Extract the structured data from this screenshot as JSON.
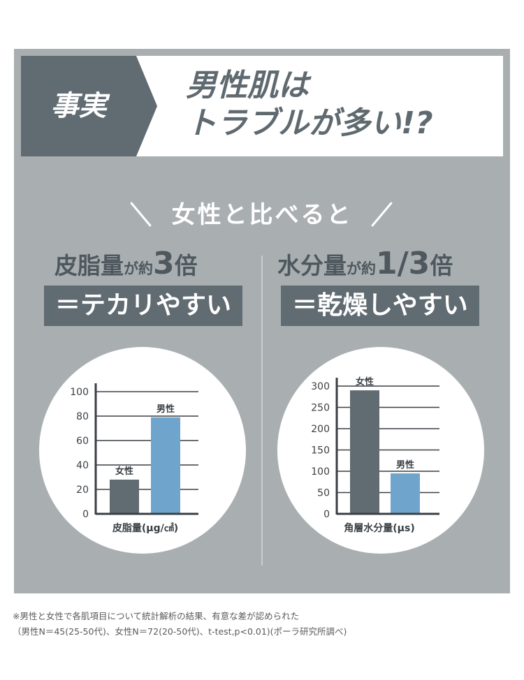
{
  "header": {
    "tag": "事実",
    "title_line1": "男性肌は",
    "title_line2": "トラブルが多い!?"
  },
  "comparison_label": "女性と比べると",
  "left": {
    "stat_main": "皮脂量",
    "stat_mid": "が約",
    "stat_num": "3",
    "stat_unit": "倍",
    "band": "＝テカリやすい"
  },
  "right": {
    "stat_main": "水分量",
    "stat_mid": "が約",
    "stat_num": "1/3",
    "stat_unit": "倍",
    "band": "＝乾燥しやすい"
  },
  "colors": {
    "panel": "#a9afb1",
    "dark": "#606b72",
    "female_bar": "#606b72",
    "male_bar": "#6fa5cc"
  },
  "chart_data": [
    {
      "type": "bar",
      "categories": [
        "女性",
        "男性"
      ],
      "values": [
        28,
        79
      ],
      "xlabel": "皮脂量(μg/㎠)",
      "ylabel": "",
      "ylim": [
        0,
        100
      ],
      "yticks": [
        0,
        20,
        40,
        60,
        80,
        100
      ],
      "grid": true
    },
    {
      "type": "bar",
      "categories": [
        "女性",
        "男性"
      ],
      "values": [
        290,
        95
      ],
      "xlabel": "角層水分量(μs)",
      "ylabel": "",
      "ylim": [
        0,
        300
      ],
      "yticks": [
        0,
        50,
        100,
        150,
        200,
        250,
        300
      ],
      "grid": true
    }
  ],
  "footnote": {
    "line1": "※男性と女性で各肌項目について統計解析の結果、有意な差が認められた",
    "line2": "（男性N＝45(25-50代)、女性N＝72(20-50代)、t-test,p<0.01)(ポーラ研究所調べ)"
  }
}
